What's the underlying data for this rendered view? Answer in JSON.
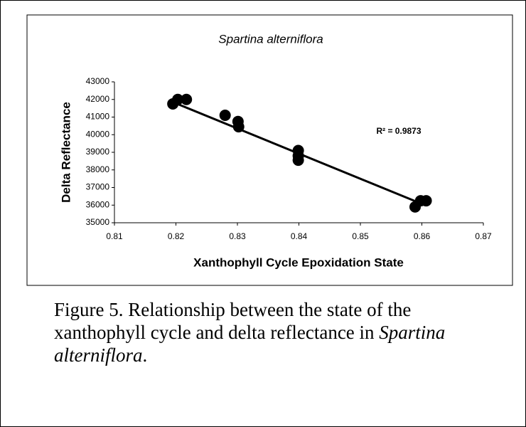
{
  "chart_data": {
    "type": "scatter",
    "title": "Spartina alterniflora",
    "x_label": "Xanthophyll Cycle Epoxidation State",
    "y_label": "Delta Reflectance",
    "annotation": "R² = 0.9873",
    "series": [
      {
        "name": "Spartina alterniflora",
        "color": "#000000",
        "x": [
          0.8195,
          0.8203,
          0.8217,
          0.828,
          0.8301,
          0.8302,
          0.8399,
          0.8399,
          0.8399,
          0.8589,
          0.8598,
          0.8607
        ],
        "values": [
          41750,
          42000,
          42000,
          41100,
          40750,
          40450,
          39100,
          38800,
          38550,
          35900,
          36250,
          36250
        ]
      }
    ],
    "trendline": {
      "x": [
        0.8195,
        0.8605
      ],
      "y": [
        41850,
        36000
      ],
      "color": "#000000"
    },
    "xlim": [
      0.81,
      0.87
    ],
    "xticks": [
      0.81,
      0.82,
      0.83,
      0.84,
      0.85,
      0.86,
      0.87
    ],
    "ylim": [
      35000,
      43000
    ],
    "yticks": [
      35000,
      36000,
      37000,
      38000,
      39000,
      40000,
      41000,
      42000,
      43000
    ],
    "grid": false
  },
  "caption": {
    "text": "Figure 5.  Relationship between the state of the xanthophyll cycle and delta reflectance in ",
    "species": "Spartina alterniflora",
    "end": "."
  }
}
